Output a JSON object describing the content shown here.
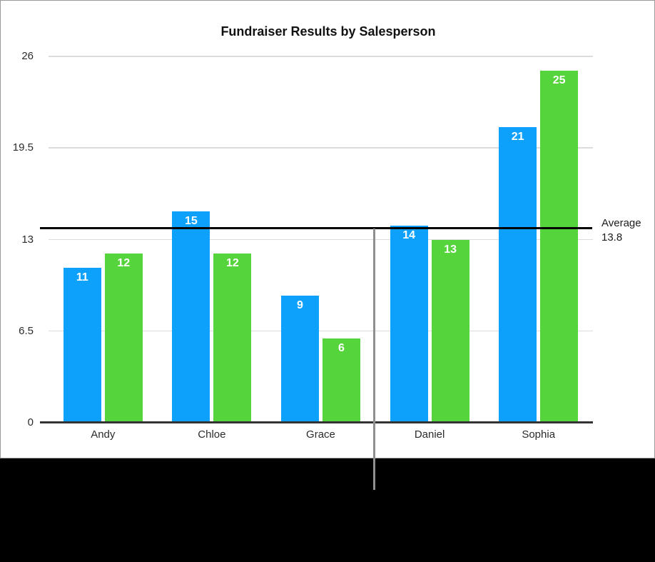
{
  "figure": {
    "title": "Fundraiser Results by Salesperson"
  },
  "chart_data": {
    "type": "bar",
    "title": "Fundraiser Results by Salesperson",
    "categories": [
      "Andy",
      "Chloe",
      "Grace",
      "Daniel",
      "Sophia"
    ],
    "series": [
      {
        "name": "series-blue",
        "color": "#0DA1FB",
        "values": [
          11,
          15,
          9,
          14,
          21
        ]
      },
      {
        "name": "series-green",
        "color": "#56D43C",
        "values": [
          12,
          12,
          6,
          13,
          25
        ]
      }
    ],
    "ylim": [
      0,
      26
    ],
    "yticks": [
      0,
      6.5,
      13,
      19.5,
      26
    ],
    "grid": true,
    "legend_position": "none",
    "bar_value_labels": true,
    "annotations": [
      {
        "type": "average_line",
        "value": 13.8,
        "label": "Average",
        "value_label": "13.8",
        "color": "#000000"
      }
    ]
  },
  "colors": {
    "bar_blue": "#0DA1FB",
    "bar_green": "#56D43C",
    "average_line": "#000000",
    "callout_line": "#8F8F8F",
    "gridline": "#DCDCDC",
    "axis_line": "#333333",
    "panel_border": "#9A9A9A",
    "caption_background": "#000000"
  }
}
